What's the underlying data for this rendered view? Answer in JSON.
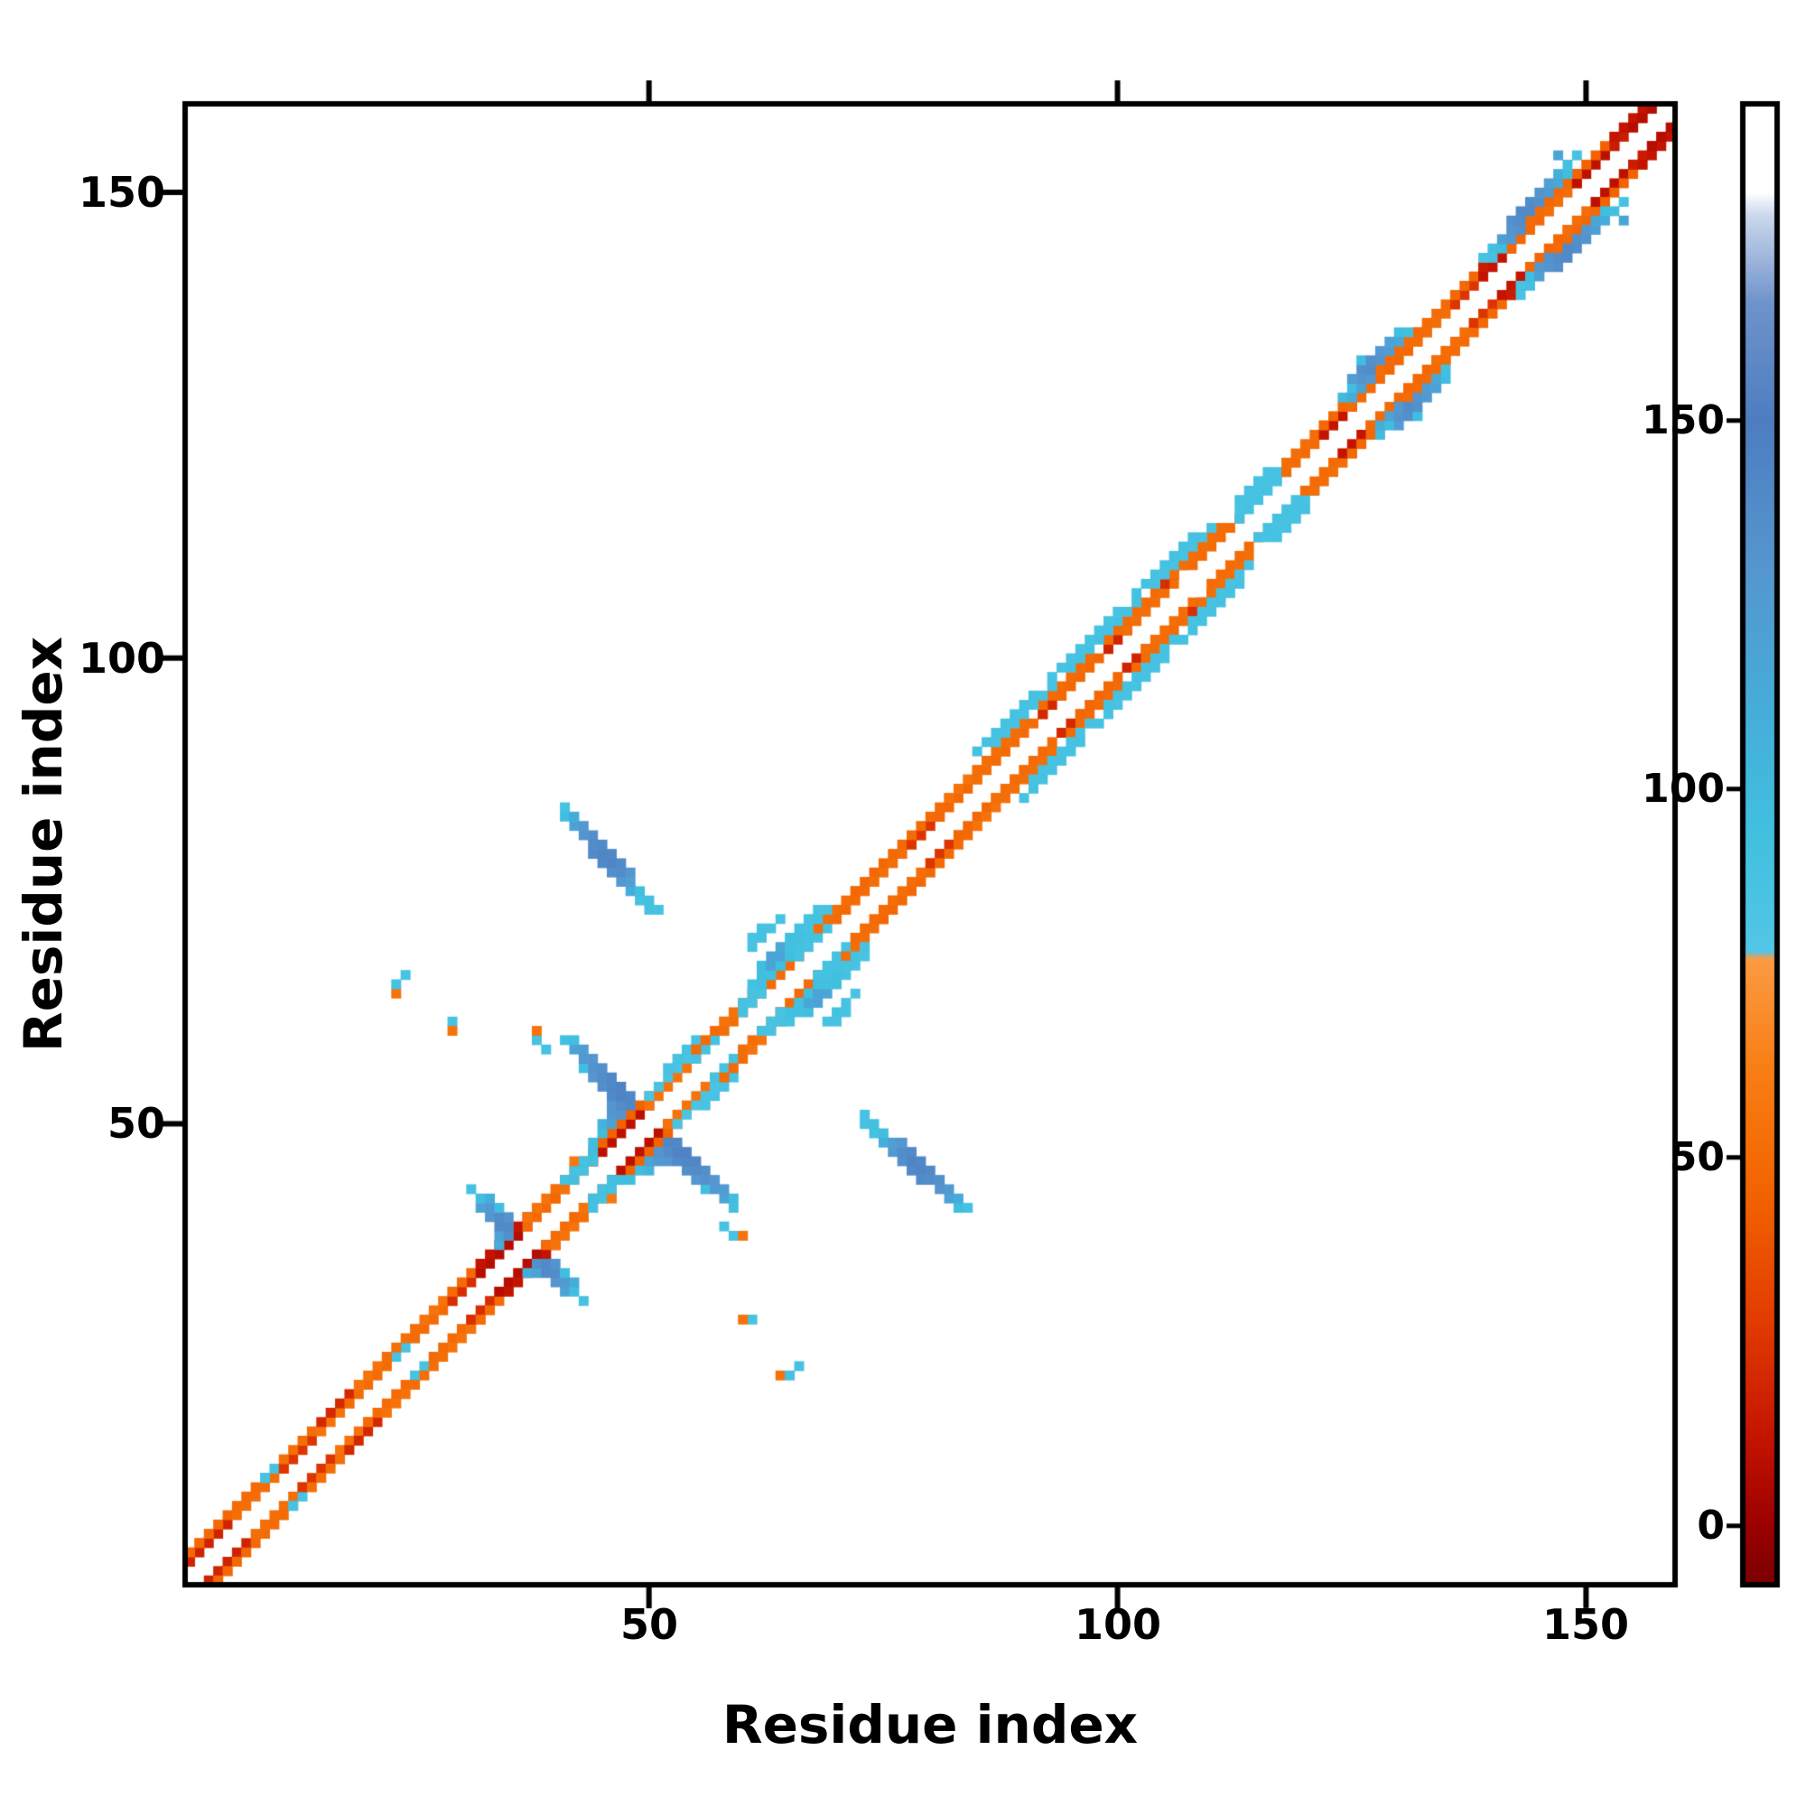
{
  "chart_data": {
    "type": "heatmap",
    "title": "",
    "xlabel": "Residue index",
    "ylabel": "Residue index",
    "xlim": [
      1,
      159
    ],
    "ylim": [
      1,
      159
    ],
    "x_ticks": [
      50,
      100,
      150
    ],
    "y_ticks": [
      50,
      100,
      150
    ],
    "grid": false,
    "symmetric": true,
    "background": "#ffffff",
    "border_color": "#000000",
    "colormap_stops": [
      [
        -8,
        "#7a0000"
      ],
      [
        0,
        "#9b0000"
      ],
      [
        12,
        "#c41400"
      ],
      [
        28,
        "#e23c00"
      ],
      [
        45,
        "#f26300"
      ],
      [
        62,
        "#f87e14"
      ],
      [
        77,
        "#fb9a42"
      ],
      [
        78,
        "#52c6e6"
      ],
      [
        95,
        "#40bfdf"
      ],
      [
        112,
        "#46abd9"
      ],
      [
        130,
        "#5596cf"
      ],
      [
        150,
        "#4d7dc0"
      ],
      [
        166,
        "#6e93cb"
      ],
      [
        178,
        "#cdd8ec"
      ],
      [
        181,
        "#ffffff"
      ],
      [
        193,
        "#ffffff"
      ]
    ],
    "colorbar": {
      "vmin": -8,
      "vmax": 193,
      "ticks": [
        0,
        50,
        100,
        150
      ],
      "position": "right"
    },
    "diag_runs": [
      [
        2,
        5,
        3,
        52
      ],
      [
        3,
        7,
        2,
        18
      ],
      [
        4,
        8,
        3,
        48
      ],
      [
        8,
        13,
        2,
        52
      ],
      [
        9,
        12,
        3,
        50
      ],
      [
        12,
        13,
        3,
        88
      ],
      [
        13,
        16,
        2,
        25
      ],
      [
        14,
        17,
        3,
        52
      ],
      [
        17,
        20,
        2,
        55
      ],
      [
        18,
        21,
        3,
        20
      ],
      [
        20,
        24,
        2,
        50
      ],
      [
        22,
        25,
        3,
        55
      ],
      [
        25,
        27,
        2,
        88
      ],
      [
        25,
        28,
        3,
        52
      ],
      [
        27,
        31,
        2,
        50
      ],
      [
        29,
        32,
        3,
        55
      ],
      [
        31,
        34,
        2,
        22
      ],
      [
        32,
        35,
        3,
        50
      ],
      [
        34,
        39,
        2,
        8
      ],
      [
        35,
        40,
        3,
        12
      ],
      [
        39,
        42,
        2,
        50
      ],
      [
        40,
        43,
        3,
        55
      ],
      [
        42,
        46,
        2,
        48
      ],
      [
        43,
        47,
        3,
        52
      ],
      [
        46,
        52,
        2,
        10
      ],
      [
        48,
        53,
        3,
        45
      ],
      [
        52,
        57,
        2,
        55
      ],
      [
        53,
        58,
        3,
        85
      ],
      [
        56,
        59,
        4,
        88
      ],
      [
        57,
        60,
        2,
        90
      ],
      [
        58,
        61,
        3,
        50
      ],
      [
        60,
        64,
        2,
        52
      ],
      [
        61,
        66,
        3,
        55
      ],
      [
        64,
        68,
        2,
        50
      ],
      [
        66,
        71,
        3,
        92
      ],
      [
        68,
        72,
        2,
        88
      ],
      [
        71,
        75,
        3,
        52
      ],
      [
        72,
        76,
        2,
        50
      ],
      [
        75,
        80,
        3,
        48
      ],
      [
        76,
        81,
        2,
        52
      ],
      [
        80,
        83,
        2,
        25
      ],
      [
        81,
        85,
        3,
        50
      ],
      [
        83,
        87,
        2,
        48
      ],
      [
        85,
        88,
        3,
        55
      ],
      [
        87,
        90,
        2,
        52
      ],
      [
        89,
        94,
        2,
        50
      ],
      [
        88,
        93,
        3,
        52
      ],
      [
        94,
        96,
        2,
        20
      ],
      [
        96,
        101,
        2,
        48
      ],
      [
        95,
        100,
        3,
        50
      ],
      [
        101,
        103,
        2,
        18
      ],
      [
        103,
        108,
        2,
        52
      ],
      [
        102,
        107,
        3,
        50
      ],
      [
        108,
        110,
        3,
        22
      ],
      [
        110,
        115,
        2,
        50
      ],
      [
        109,
        114,
        3,
        52
      ],
      [
        91,
        97,
        4,
        88
      ],
      [
        90,
        96,
        5,
        90
      ],
      [
        99,
        106,
        4,
        90
      ],
      [
        98,
        105,
        5,
        88
      ],
      [
        108,
        114,
        4,
        88
      ],
      [
        107,
        113,
        5,
        90
      ],
      [
        115,
        120,
        2,
        90
      ],
      [
        116,
        121,
        3,
        88
      ],
      [
        117,
        119,
        4,
        90
      ],
      [
        120,
        124,
        2,
        50
      ],
      [
        121,
        125,
        3,
        52
      ],
      [
        124,
        127,
        2,
        12
      ],
      [
        125,
        128,
        3,
        48
      ],
      [
        127,
        131,
        2,
        50
      ],
      [
        128,
        132,
        3,
        52
      ],
      [
        131,
        135,
        2,
        48
      ],
      [
        132,
        136,
        3,
        50
      ],
      [
        134,
        138,
        2,
        52
      ],
      [
        135,
        139,
        3,
        50
      ],
      [
        138,
        141,
        2,
        25
      ],
      [
        139,
        142,
        3,
        48
      ],
      [
        141,
        144,
        2,
        12
      ],
      [
        142,
        145,
        3,
        15
      ],
      [
        144,
        148,
        2,
        48
      ],
      [
        145,
        149,
        3,
        50
      ],
      [
        148,
        151,
        2,
        52
      ],
      [
        149,
        152,
        3,
        48
      ],
      [
        151,
        155,
        2,
        10
      ],
      [
        152,
        156,
        3,
        45
      ],
      [
        155,
        158,
        2,
        15
      ],
      [
        156,
        159,
        3,
        12
      ],
      [
        157,
        159,
        2,
        8
      ]
    ],
    "cells": [
      [
        12,
        9,
        88
      ],
      [
        37,
        34,
        110
      ],
      [
        38,
        34,
        120
      ],
      [
        38,
        35,
        135
      ],
      [
        39,
        34,
        140
      ],
      [
        39,
        35,
        140
      ],
      [
        40,
        33,
        130
      ],
      [
        40,
        34,
        138
      ],
      [
        40,
        35,
        132
      ],
      [
        41,
        32,
        120
      ],
      [
        41,
        33,
        128
      ],
      [
        41,
        34,
        96
      ],
      [
        42,
        32,
        96
      ],
      [
        42,
        33,
        110
      ],
      [
        43,
        31,
        90
      ],
      [
        49,
        45,
        98
      ],
      [
        50,
        45,
        105
      ],
      [
        50,
        46,
        120
      ],
      [
        51,
        46,
        128
      ],
      [
        51,
        47,
        132
      ],
      [
        52,
        46,
        130
      ],
      [
        52,
        47,
        138
      ],
      [
        52,
        48,
        142
      ],
      [
        53,
        46,
        140
      ],
      [
        53,
        47,
        145
      ],
      [
        53,
        48,
        142
      ],
      [
        54,
        45,
        135
      ],
      [
        54,
        46,
        142
      ],
      [
        54,
        47,
        145
      ],
      [
        55,
        44,
        130
      ],
      [
        55,
        45,
        138
      ],
      [
        55,
        46,
        142
      ],
      [
        56,
        43,
        96
      ],
      [
        56,
        44,
        133
      ],
      [
        56,
        45,
        136
      ],
      [
        57,
        43,
        128
      ],
      [
        57,
        44,
        130
      ],
      [
        58,
        42,
        120
      ],
      [
        58,
        43,
        124
      ],
      [
        59,
        41,
        92
      ],
      [
        59,
        42,
        96
      ],
      [
        43,
        41,
        55
      ],
      [
        44,
        41,
        90
      ],
      [
        44,
        42,
        92
      ],
      [
        45,
        42,
        88
      ],
      [
        45,
        43,
        90
      ],
      [
        46,
        42,
        58
      ],
      [
        46,
        43,
        90
      ],
      [
        46,
        44,
        92
      ],
      [
        47,
        44,
        94
      ],
      [
        48,
        44,
        96
      ],
      [
        58,
        39,
        90
      ],
      [
        59,
        38,
        88
      ],
      [
        60,
        38,
        55
      ],
      [
        61,
        29,
        88
      ],
      [
        60,
        29,
        55
      ],
      [
        64,
        23,
        55
      ],
      [
        65,
        23,
        90
      ],
      [
        66,
        24,
        88
      ],
      [
        62,
        60,
        90
      ],
      [
        63,
        60,
        88
      ],
      [
        63,
        61,
        86
      ],
      [
        64,
        61,
        88
      ],
      [
        64,
        62,
        86
      ],
      [
        65,
        61,
        90
      ],
      [
        65,
        62,
        92
      ],
      [
        66,
        62,
        95
      ],
      [
        66,
        63,
        92
      ],
      [
        67,
        62,
        96
      ],
      [
        67,
        63,
        118
      ],
      [
        67,
        64,
        95
      ],
      [
        68,
        63,
        120
      ],
      [
        68,
        64,
        118
      ],
      [
        68,
        65,
        95
      ],
      [
        69,
        64,
        116
      ],
      [
        69,
        65,
        92
      ],
      [
        69,
        66,
        90
      ],
      [
        70,
        65,
        94
      ],
      [
        70,
        66,
        92
      ],
      [
        70,
        67,
        90
      ],
      [
        71,
        66,
        90
      ],
      [
        71,
        67,
        88
      ],
      [
        72,
        67,
        88
      ],
      [
        72,
        68,
        90
      ],
      [
        73,
        68,
        86
      ],
      [
        73,
        69,
        88
      ],
      [
        69,
        61,
        88
      ],
      [
        70,
        61,
        86
      ],
      [
        71,
        62,
        88
      ],
      [
        70,
        62,
        90
      ],
      [
        71,
        63,
        88
      ],
      [
        72,
        64,
        86
      ],
      [
        73,
        50,
        90
      ],
      [
        73,
        51,
        88
      ],
      [
        74,
        50,
        92
      ],
      [
        74,
        49,
        90
      ],
      [
        75,
        48,
        110
      ],
      [
        75,
        49,
        95
      ],
      [
        76,
        47,
        128
      ],
      [
        76,
        48,
        122
      ],
      [
        77,
        46,
        135
      ],
      [
        77,
        47,
        138
      ],
      [
        77,
        48,
        130
      ],
      [
        78,
        45,
        140
      ],
      [
        78,
        46,
        144
      ],
      [
        78,
        47,
        140
      ],
      [
        79,
        44,
        140
      ],
      [
        79,
        45,
        143
      ],
      [
        79,
        46,
        141
      ],
      [
        80,
        44,
        138
      ],
      [
        80,
        45,
        140
      ],
      [
        81,
        43,
        132
      ],
      [
        81,
        44,
        136
      ],
      [
        82,
        42,
        120
      ],
      [
        82,
        43,
        128
      ],
      [
        83,
        41,
        96
      ],
      [
        83,
        42,
        112
      ],
      [
        84,
        41,
        90
      ],
      [
        119,
        115,
        88
      ],
      [
        120,
        116,
        90
      ],
      [
        128,
        124,
        100
      ],
      [
        128,
        125,
        110
      ],
      [
        129,
        125,
        96
      ],
      [
        129,
        126,
        120
      ],
      [
        130,
        125,
        125
      ],
      [
        130,
        126,
        132
      ],
      [
        130,
        127,
        128
      ],
      [
        131,
        126,
        136
      ],
      [
        131,
        127,
        138
      ],
      [
        132,
        126,
        96
      ],
      [
        132,
        127,
        134
      ],
      [
        132,
        128,
        132
      ],
      [
        133,
        128,
        128
      ],
      [
        133,
        129,
        124
      ],
      [
        134,
        129,
        120
      ],
      [
        134,
        130,
        116
      ],
      [
        135,
        130,
        96
      ],
      [
        135,
        131,
        92
      ],
      [
        143,
        139,
        86
      ],
      [
        143,
        140,
        88
      ],
      [
        144,
        140,
        92
      ],
      [
        144,
        141,
        96
      ],
      [
        145,
        141,
        122
      ],
      [
        145,
        142,
        128
      ],
      [
        146,
        142,
        132
      ],
      [
        146,
        143,
        134
      ],
      [
        147,
        142,
        136
      ],
      [
        147,
        143,
        138
      ],
      [
        148,
        143,
        140
      ],
      [
        148,
        144,
        140
      ],
      [
        149,
        144,
        138
      ],
      [
        149,
        145,
        136
      ],
      [
        150,
        145,
        132
      ],
      [
        150,
        146,
        128
      ],
      [
        151,
        146,
        122
      ],
      [
        151,
        147,
        116
      ],
      [
        152,
        147,
        110
      ],
      [
        152,
        148,
        96
      ],
      [
        153,
        148,
        92
      ],
      [
        154,
        149,
        88
      ],
      [
        154,
        147,
        118
      ]
    ]
  }
}
